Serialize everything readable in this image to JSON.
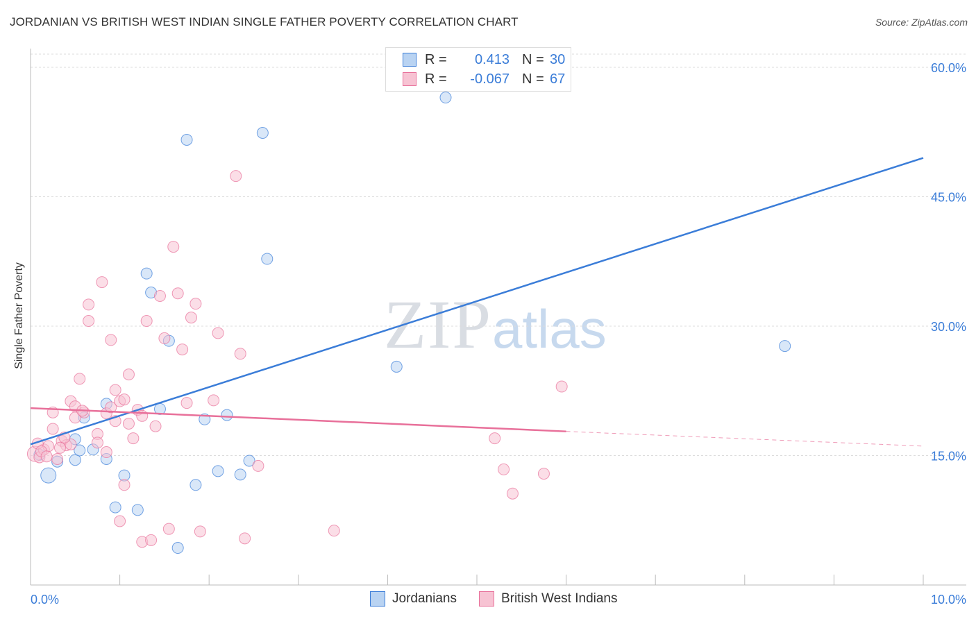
{
  "title": "JORDANIAN VS BRITISH WEST INDIAN SINGLE FATHER POVERTY CORRELATION CHART",
  "source": "Source: ZipAtlas.com",
  "watermark": {
    "zip": "ZIP",
    "atlas": "atlas"
  },
  "legend": {
    "jordanians": {
      "r_label": "R =",
      "r_value": "0.413",
      "n_label": "N =",
      "n_value": "30"
    },
    "bwi": {
      "r_label": "R =",
      "r_value": "-0.067",
      "n_label": "N =",
      "n_value": "67"
    }
  },
  "bottom_legend": {
    "jordanians": "Jordanians",
    "bwi": "British West Indians"
  },
  "colors": {
    "blue": "#3b7dd8",
    "blue_fill": "#b9d3f2",
    "pink": "#e8709a",
    "pink_fill": "#f7c3d3"
  },
  "chart_data": {
    "type": "scatter",
    "title": "JORDANIAN VS BRITISH WEST INDIAN SINGLE FATHER POVERTY CORRELATION CHART",
    "xlabel": "",
    "ylabel": "Single Father Poverty",
    "xlim": [
      0,
      10
    ],
    "ylim": [
      0,
      63
    ],
    "x_tick_labels": [
      "0.0%",
      "10.0%"
    ],
    "y_ticks": [
      15,
      30,
      45,
      60
    ],
    "y_tick_labels": [
      "15.0%",
      "30.0%",
      "45.0%",
      "60.0%"
    ],
    "series": [
      {
        "name": "Jordanians",
        "color": "#3b7dd8",
        "trend": {
          "x0": 0.0,
          "y0": 16.3,
          "x1": 10.0,
          "y1": 49.5
        },
        "points": [
          [
            0.1,
            15.1
          ],
          [
            0.2,
            12.7
          ],
          [
            0.3,
            14.3
          ],
          [
            0.5,
            14.5
          ],
          [
            0.5,
            16.9
          ],
          [
            0.55,
            15.6
          ],
          [
            0.6,
            19.4
          ],
          [
            0.7,
            15.7
          ],
          [
            0.85,
            14.6
          ],
          [
            0.85,
            21.0
          ],
          [
            0.95,
            9.0
          ],
          [
            1.05,
            12.7
          ],
          [
            1.2,
            8.7
          ],
          [
            1.3,
            36.1
          ],
          [
            1.35,
            33.9
          ],
          [
            1.45,
            20.4
          ],
          [
            1.55,
            28.3
          ],
          [
            1.65,
            4.3
          ],
          [
            1.75,
            51.6
          ],
          [
            1.85,
            11.6
          ],
          [
            1.95,
            19.2
          ],
          [
            2.1,
            13.2
          ],
          [
            2.2,
            19.7
          ],
          [
            2.35,
            12.8
          ],
          [
            2.45,
            14.4
          ],
          [
            2.6,
            52.4
          ],
          [
            2.65,
            37.8
          ],
          [
            4.1,
            25.3
          ],
          [
            4.65,
            56.5
          ],
          [
            8.45,
            27.7
          ]
        ]
      },
      {
        "name": "British West Indians",
        "color": "#e8709a",
        "trend": {
          "x0": 0.0,
          "y0": 20.5,
          "x1": 6.0,
          "y1": 17.8,
          "dash_x1": 10.0,
          "dash_y1": 16.1
        },
        "points": [
          [
            0.05,
            15.2
          ],
          [
            0.1,
            14.8
          ],
          [
            0.15,
            15.7
          ],
          [
            0.2,
            16.1
          ],
          [
            0.25,
            20.0
          ],
          [
            0.25,
            18.1
          ],
          [
            0.3,
            14.6
          ],
          [
            0.35,
            16.7
          ],
          [
            0.4,
            16.2
          ],
          [
            0.45,
            16.3
          ],
          [
            0.45,
            21.3
          ],
          [
            0.5,
            19.4
          ],
          [
            0.5,
            20.7
          ],
          [
            0.55,
            23.9
          ],
          [
            0.6,
            20.0
          ],
          [
            0.65,
            30.6
          ],
          [
            0.65,
            32.5
          ],
          [
            0.75,
            17.5
          ],
          [
            0.75,
            16.5
          ],
          [
            0.8,
            35.1
          ],
          [
            0.85,
            19.9
          ],
          [
            0.85,
            15.4
          ],
          [
            0.9,
            20.6
          ],
          [
            0.9,
            28.4
          ],
          [
            0.95,
            22.6
          ],
          [
            1.0,
            21.3
          ],
          [
            1.0,
            7.4
          ],
          [
            1.05,
            11.6
          ],
          [
            1.05,
            21.5
          ],
          [
            1.1,
            18.7
          ],
          [
            1.1,
            24.4
          ],
          [
            1.15,
            17.0
          ],
          [
            1.2,
            20.3
          ],
          [
            1.25,
            19.6
          ],
          [
            1.25,
            5.0
          ],
          [
            1.3,
            30.6
          ],
          [
            1.35,
            5.2
          ],
          [
            1.4,
            18.4
          ],
          [
            1.45,
            33.5
          ],
          [
            1.5,
            28.6
          ],
          [
            1.55,
            6.5
          ],
          [
            1.6,
            39.2
          ],
          [
            1.65,
            33.8
          ],
          [
            1.7,
            27.3
          ],
          [
            1.75,
            21.1
          ],
          [
            1.8,
            31.0
          ],
          [
            1.85,
            32.6
          ],
          [
            1.9,
            6.2
          ],
          [
            2.05,
            21.4
          ],
          [
            2.1,
            29.2
          ],
          [
            2.3,
            47.4
          ],
          [
            2.35,
            26.8
          ],
          [
            2.4,
            5.4
          ],
          [
            2.55,
            13.8
          ],
          [
            3.4,
            6.3
          ],
          [
            5.2,
            17.0
          ],
          [
            5.3,
            13.4
          ],
          [
            5.4,
            10.6
          ],
          [
            5.75,
            12.9
          ],
          [
            5.95,
            23.0
          ],
          [
            0.08,
            16.4
          ],
          [
            0.12,
            15.5
          ],
          [
            0.33,
            15.9
          ],
          [
            0.18,
            14.9
          ],
          [
            0.38,
            17.1
          ],
          [
            0.58,
            20.2
          ],
          [
            0.95,
            19.0
          ]
        ]
      }
    ],
    "legend_position": "top-center"
  }
}
